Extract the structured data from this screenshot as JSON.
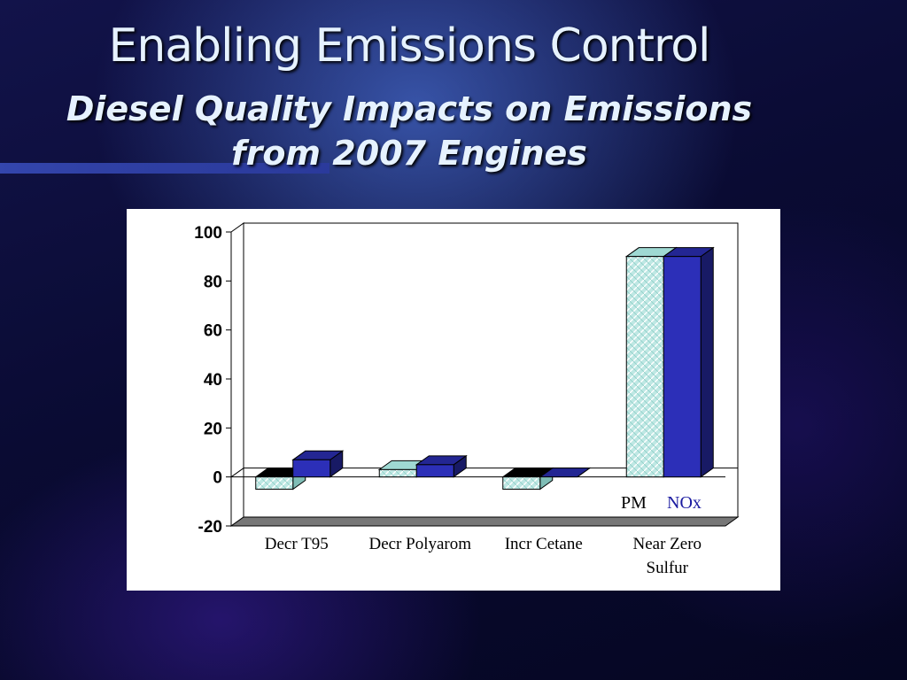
{
  "slide": {
    "title": "Enabling Emissions Control",
    "subtitle_line1": "Diesel Quality Impacts on Emissions",
    "subtitle_line2": "from 2007 Engines"
  },
  "chart_data": {
    "type": "bar",
    "style": "3d-clustered",
    "categories": [
      "Decr T95",
      "Decr Polyarom",
      "Incr Cetane",
      "Near Zero Sulfur"
    ],
    "category_lines": [
      [
        "Decr T95"
      ],
      [
        "Decr Polyarom"
      ],
      [
        "Incr Cetane"
      ],
      [
        "Near Zero",
        "Sulfur"
      ]
    ],
    "series": [
      {
        "name": "PM",
        "values": [
          -5,
          3,
          -5,
          90
        ],
        "color": "#bfe8e4",
        "pattern": "crosshatch"
      },
      {
        "name": "NOx",
        "values": [
          7,
          5,
          0,
          90
        ],
        "color": "#2c2fb8"
      }
    ],
    "ylim": [
      -20,
      100
    ],
    "yticks": [
      100,
      80,
      60,
      40,
      20,
      0,
      -20
    ],
    "legend_placement": "bottom-right",
    "grid": false,
    "colors": {
      "legend_pm": "#000000",
      "legend_nox": "#1a1aa0",
      "floor": "#777777"
    }
  }
}
